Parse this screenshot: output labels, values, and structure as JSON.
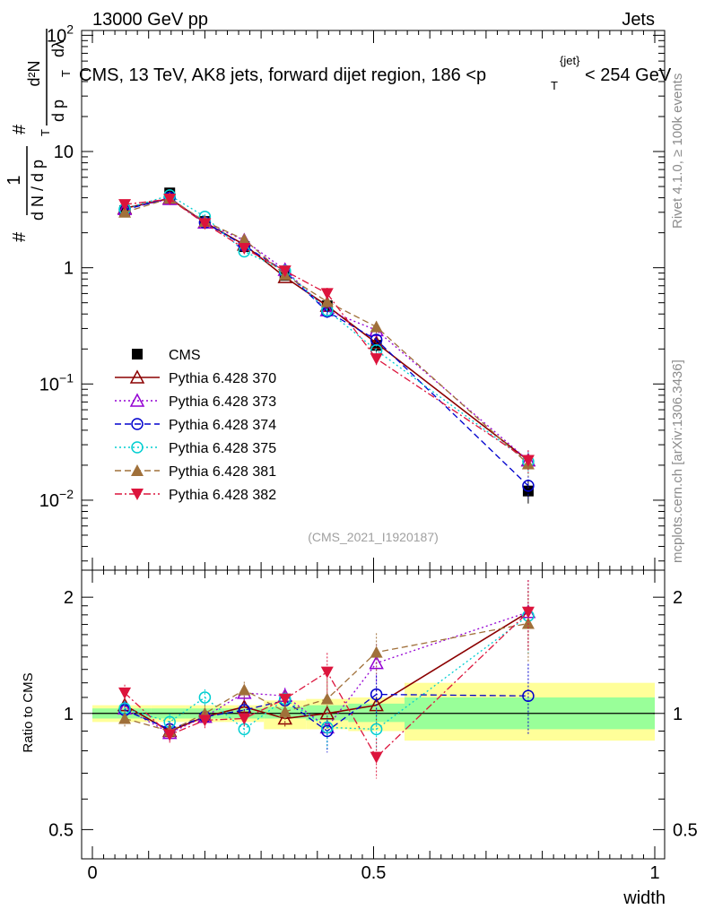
{
  "header": {
    "left": "13000 GeV pp",
    "right": "Jets"
  },
  "side_texts": {
    "rivet": "Rivet 4.1.0, ≥ 100k events",
    "mcplots": "mcplots.cern.ch [arXiv:1306.3436]"
  },
  "analysis_id": "(CMS_2021_I1920187)",
  "chart_data": [
    {
      "type": "scatter",
      "scale": "log",
      "title": "CMS, 13 TeV, AK8 jets, forward dijet region, 186 <p_T^{jet}< 254 GeV",
      "title_parts": {
        "main": "CMS, 13 TeV, AK8 jets, forward dijet region, 186 <p",
        "sup": "{jet}",
        "sub": "T",
        "tail": "< 254 GeV"
      },
      "ylabel": "1/(dN/dp_T) d²N/(dp_T dλ)",
      "ylabel_parts": {
        "hash_1": "#",
        "numer_1": "1",
        "denom_1": "d N / d p",
        "sub_T": "T",
        "hash_2": "#",
        "numer_2": "d²N",
        "denom_2": "d p",
        "denom_2b": "dλ"
      },
      "ylim": [
        0.0025,
        110
      ],
      "y_ticks": [
        {
          "value": 0.01,
          "base": "10",
          "exp": "−2"
        },
        {
          "value": 0.1,
          "base": "10",
          "exp": "−1"
        },
        {
          "value": 1,
          "base": "1",
          "exp": ""
        },
        {
          "value": 10,
          "base": "10",
          "exp": ""
        },
        {
          "value": 100,
          "base": "10",
          "exp": "2"
        }
      ],
      "x": [
        0.0575,
        0.1375,
        0.2,
        0.27,
        0.3425,
        0.4175,
        0.505,
        0.775
      ],
      "bin_edges": [
        0,
        0.105,
        0.165,
        0.235,
        0.305,
        0.38,
        0.455,
        0.555,
        1.0
      ],
      "series": [
        {
          "name": "CMS",
          "color": "#000000",
          "marker": "filled-square",
          "line": "none",
          "values": [
            3.1,
            4.4,
            2.5,
            1.52,
            0.86,
            0.47,
            0.215,
            0.012
          ]
        },
        {
          "name": "Pythia 6.428 370",
          "color": "#8b0000",
          "marker": "open-triangle-up",
          "line": "solid",
          "values": [
            3.25,
            3.95,
            2.45,
            1.58,
            0.83,
            0.47,
            0.225,
            0.022
          ]
        },
        {
          "name": "Pythia 6.428 373",
          "color": "#9400d3",
          "marker": "open-triangle-up",
          "line": "dotted",
          "values": [
            3.2,
            3.9,
            2.45,
            1.72,
            0.96,
            0.43,
            0.29,
            0.022
          ]
        },
        {
          "name": "Pythia 6.428 374",
          "color": "#0000cd",
          "marker": "open-circle",
          "line": "dashed",
          "values": [
            3.15,
            4.0,
            2.45,
            1.55,
            0.93,
            0.42,
            0.24,
            0.0133
          ]
        },
        {
          "name": "Pythia 6.428 375",
          "color": "#00ced1",
          "marker": "open-circle",
          "line": "dotted",
          "values": [
            3.2,
            4.2,
            2.75,
            1.38,
            0.94,
            0.43,
            0.195,
            0.0215
          ]
        },
        {
          "name": "Pythia 6.428 381",
          "color": "#a0703a",
          "marker": "filled-triangle-up",
          "line": "dashed",
          "values": [
            3.0,
            3.95,
            2.5,
            1.75,
            0.87,
            0.51,
            0.31,
            0.0205
          ]
        },
        {
          "name": "Pythia 6.428 382",
          "color": "#dc143c",
          "marker": "filled-triangle-down",
          "line": "dashdot",
          "values": [
            3.5,
            3.9,
            2.4,
            1.47,
            0.94,
            0.6,
            0.165,
            0.022
          ]
        }
      ]
    },
    {
      "type": "scatter",
      "scale": "log",
      "ylabel": "Ratio to CMS",
      "xlabel": "width",
      "xlim": [
        0,
        1
      ],
      "ylim": [
        0.42,
        2.35
      ],
      "x_ticks": [
        {
          "value": 0,
          "label": "0"
        },
        {
          "value": 0.5,
          "label": "0.5"
        },
        {
          "value": 1,
          "label": "1"
        }
      ],
      "y_ticks": [
        {
          "value": 0.5,
          "label": "0.5"
        },
        {
          "value": 1,
          "label": "1"
        },
        {
          "value": 2,
          "label": "2"
        }
      ],
      "bands": {
        "bin_edges": [
          0,
          0.105,
          0.165,
          0.235,
          0.305,
          0.38,
          0.455,
          0.555,
          1.0
        ],
        "green": [
          [
            0.97,
            1.03
          ],
          [
            0.97,
            1.03
          ],
          [
            0.97,
            1.03
          ],
          [
            0.97,
            1.03
          ],
          [
            0.97,
            1.04
          ],
          [
            0.96,
            1.05
          ],
          [
            0.95,
            1.06
          ],
          [
            0.91,
            1.1
          ]
        ],
        "yellow": [
          [
            0.95,
            1.05
          ],
          [
            0.95,
            1.05
          ],
          [
            0.95,
            1.05
          ],
          [
            0.95,
            1.05
          ],
          [
            0.91,
            1.08
          ],
          [
            0.91,
            1.09
          ],
          [
            0.9,
            1.1
          ],
          [
            0.85,
            1.2
          ]
        ]
      },
      "series": [
        {
          "name": "Pythia 6.428 370",
          "values": [
            1.05,
            0.9,
            0.98,
            1.04,
            0.97,
            1.0,
            1.05,
            1.83
          ]
        },
        {
          "name": "Pythia 6.428 373",
          "values": [
            1.03,
            0.89,
            0.98,
            1.13,
            1.11,
            0.92,
            1.35,
            1.83
          ]
        },
        {
          "name": "Pythia 6.428 374",
          "values": [
            1.02,
            0.91,
            0.98,
            1.02,
            1.08,
            0.9,
            1.12,
            1.11
          ]
        },
        {
          "name": "Pythia 6.428 375",
          "values": [
            1.03,
            0.95,
            1.1,
            0.91,
            1.09,
            0.92,
            0.91,
            1.79
          ]
        },
        {
          "name": "Pythia 6.428 381",
          "values": [
            0.97,
            0.9,
            1.0,
            1.15,
            1.01,
            1.09,
            1.44,
            1.71
          ]
        },
        {
          "name": "Pythia 6.428 382",
          "values": [
            1.13,
            0.88,
            0.96,
            0.97,
            1.09,
            1.28,
            0.77,
            1.83
          ]
        }
      ]
    }
  ]
}
